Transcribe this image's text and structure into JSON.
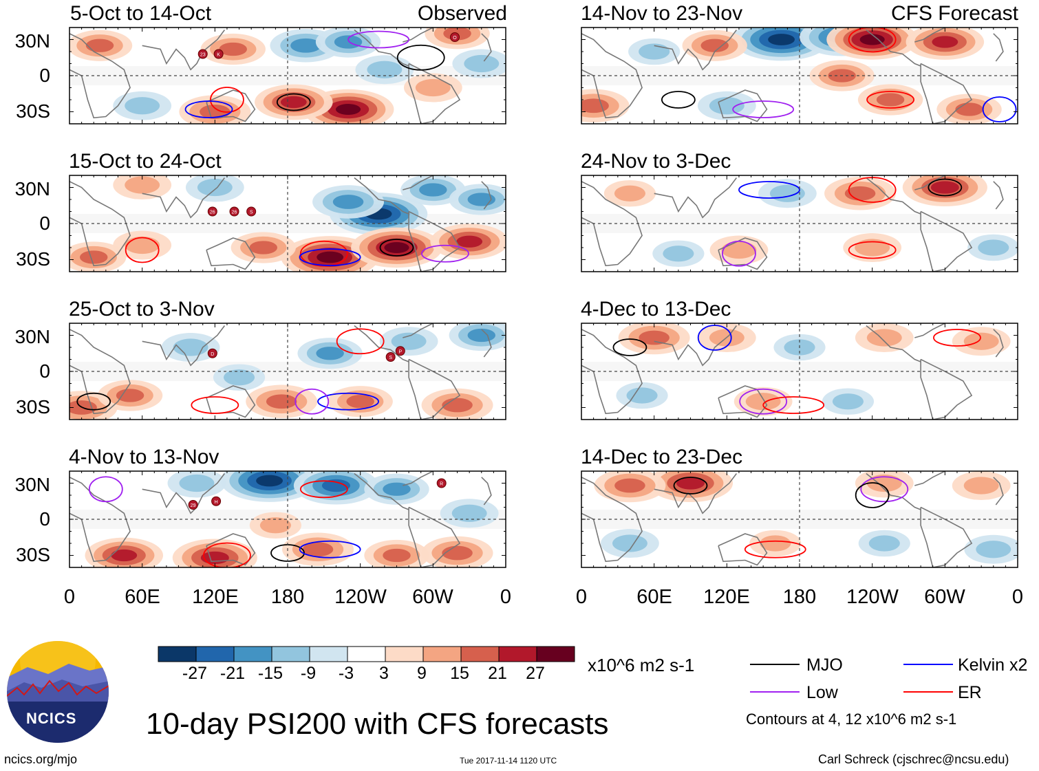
{
  "figure": {
    "title": "10-day PSI200 with CFS forecasts",
    "website": "ncics.org/mjo",
    "timestamp": "Tue 2017-11-14 1120 UTC",
    "credit": "Carl Schreck (cjschrec@ncsu.edu)",
    "logo_text": "NCICS"
  },
  "left_column_label": "Observed",
  "right_column_label": "CFS Forecast",
  "panels": [
    {
      "title": "5-Oct to 14-Oct"
    },
    {
      "title": "15-Oct to 24-Oct"
    },
    {
      "title": "25-Oct to 3-Nov"
    },
    {
      "title": "4-Nov to 13-Nov"
    },
    {
      "title": "14-Nov to 23-Nov"
    },
    {
      "title": "24-Nov to 3-Dec"
    },
    {
      "title": "4-Dec to 13-Dec"
    },
    {
      "title": "14-Dec to 23-Dec"
    }
  ],
  "colorbar": {
    "units": "x10^6 m2 s-1",
    "ticks": [
      "-27",
      "-21",
      "-15",
      "-9",
      "-3",
      "3",
      "9",
      "15",
      "21",
      "27"
    ],
    "colors": [
      "#0b3768",
      "#2166ac",
      "#4393c3",
      "#92c5de",
      "#d1e5f0",
      "#ffffff",
      "#fddbc7",
      "#f4a582",
      "#d6604d",
      "#b2182b",
      "#67001f"
    ]
  },
  "legend": {
    "items": [
      {
        "label": "MJO",
        "color": "#000000"
      },
      {
        "label": "Kelvin x2",
        "color": "#0000ff"
      },
      {
        "label": "Low",
        "color": "#a020f0"
      },
      {
        "label": "ER",
        "color": "#ff0000"
      }
    ],
    "note": "Contours at 4, 12 x10^6 m2 s-1"
  },
  "chart_data": {
    "type": "heatmap",
    "variable": "PSI200",
    "title": "10-day PSI200 with CFS forecasts",
    "units": "x10^6 m2 s-1",
    "x_ticks": [
      "0",
      "60E",
      "120E",
      "180",
      "120W",
      "60W",
      "0"
    ],
    "x_values": [
      0,
      60,
      120,
      180,
      240,
      300,
      360
    ],
    "y_ticks": [
      "30N",
      "0",
      "30S"
    ],
    "y_values": [
      30,
      0,
      -30
    ],
    "xlim": [
      0,
      360
    ],
    "ylim": [
      -40,
      40
    ],
    "contour_levels": [
      4,
      12
    ],
    "storm_labels": [
      {
        "panel": 0,
        "labels": [
          "23",
          "K",
          "O"
        ]
      },
      {
        "panel": 1,
        "labels": [
          "26",
          "26",
          "S"
        ]
      },
      {
        "panel": 2,
        "labels": [
          "D",
          "S",
          "P"
        ]
      },
      {
        "panel": 3,
        "labels": [
          "29",
          "H",
          "R"
        ]
      }
    ],
    "anomaly_features": [
      {
        "panel": 0,
        "features": [
          {
            "lon": 135,
            "lat": 22,
            "v": 12
          },
          {
            "lon": 230,
            "lat": -28,
            "v": 24
          },
          {
            "lon": 185,
            "lat": -22,
            "v": 18
          },
          {
            "lon": 120,
            "lat": -30,
            "v": 15
          },
          {
            "lon": 195,
            "lat": 25,
            "v": -15
          },
          {
            "lon": 230,
            "lat": 28,
            "v": -12
          },
          {
            "lon": 320,
            "lat": 35,
            "v": 12
          },
          {
            "lon": 340,
            "lat": 10,
            "v": -9
          },
          {
            "lon": 260,
            "lat": 5,
            "v": -9
          },
          {
            "lon": 25,
            "lat": 25,
            "v": 12
          },
          {
            "lon": 60,
            "lat": -25,
            "v": -9
          },
          {
            "lon": 300,
            "lat": -10,
            "v": 9
          }
        ]
      },
      {
        "panel": 1,
        "features": [
          {
            "lon": 255,
            "lat": 8,
            "v": -27
          },
          {
            "lon": 230,
            "lat": 18,
            "v": -15
          },
          {
            "lon": 215,
            "lat": -28,
            "v": 27
          },
          {
            "lon": 270,
            "lat": -20,
            "v": 24
          },
          {
            "lon": 330,
            "lat": -15,
            "v": 18
          },
          {
            "lon": 160,
            "lat": -20,
            "v": 12
          },
          {
            "lon": 20,
            "lat": -28,
            "v": 12
          },
          {
            "lon": 60,
            "lat": -18,
            "v": 9
          },
          {
            "lon": 300,
            "lat": 28,
            "v": -12
          },
          {
            "lon": 120,
            "lat": 30,
            "v": -9
          },
          {
            "lon": 60,
            "lat": 32,
            "v": 9
          },
          {
            "lon": 340,
            "lat": 20,
            "v": -12
          }
        ]
      },
      {
        "panel": 2,
        "features": [
          {
            "lon": 10,
            "lat": -30,
            "v": 15
          },
          {
            "lon": 50,
            "lat": -20,
            "v": 12
          },
          {
            "lon": 100,
            "lat": 20,
            "v": -9
          },
          {
            "lon": 175,
            "lat": -25,
            "v": 15
          },
          {
            "lon": 240,
            "lat": -25,
            "v": 12
          },
          {
            "lon": 320,
            "lat": -28,
            "v": 15
          },
          {
            "lon": 215,
            "lat": 15,
            "v": -12
          },
          {
            "lon": 280,
            "lat": 25,
            "v": -9
          },
          {
            "lon": 340,
            "lat": 30,
            "v": -12
          },
          {
            "lon": 140,
            "lat": -5,
            "v": -6
          }
        ]
      },
      {
        "panel": 3,
        "features": [
          {
            "lon": 165,
            "lat": 32,
            "v": -27
          },
          {
            "lon": 220,
            "lat": 28,
            "v": -21
          },
          {
            "lon": 120,
            "lat": -32,
            "v": 21
          },
          {
            "lon": 45,
            "lat": -30,
            "v": 18
          },
          {
            "lon": 205,
            "lat": -25,
            "v": 15
          },
          {
            "lon": 270,
            "lat": -30,
            "v": 12
          },
          {
            "lon": 320,
            "lat": -28,
            "v": 15
          },
          {
            "lon": 270,
            "lat": 25,
            "v": -12
          },
          {
            "lon": 330,
            "lat": 5,
            "v": -9
          },
          {
            "lon": 105,
            "lat": 30,
            "v": -9
          },
          {
            "lon": 170,
            "lat": -5,
            "v": 6
          }
        ]
      },
      {
        "panel": 4,
        "features": [
          {
            "lon": 165,
            "lat": 30,
            "v": -27
          },
          {
            "lon": 215,
            "lat": 32,
            "v": -21
          },
          {
            "lon": 240,
            "lat": 30,
            "v": 24
          },
          {
            "lon": 300,
            "lat": 28,
            "v": 18
          },
          {
            "lon": 215,
            "lat": 0,
            "v": 12
          },
          {
            "lon": 255,
            "lat": -20,
            "v": 12
          },
          {
            "lon": 10,
            "lat": -25,
            "v": 15
          },
          {
            "lon": 110,
            "lat": 25,
            "v": 12
          },
          {
            "lon": 120,
            "lat": -25,
            "v": -9
          },
          {
            "lon": 320,
            "lat": -28,
            "v": 12
          },
          {
            "lon": 60,
            "lat": 20,
            "v": -6
          }
        ]
      },
      {
        "panel": 5,
        "features": [
          {
            "lon": 300,
            "lat": 30,
            "v": 21
          },
          {
            "lon": 230,
            "lat": 25,
            "v": 15
          },
          {
            "lon": 170,
            "lat": 25,
            "v": -9
          },
          {
            "lon": 130,
            "lat": -22,
            "v": 9
          },
          {
            "lon": 240,
            "lat": -20,
            "v": 9
          },
          {
            "lon": 40,
            "lat": 25,
            "v": 6
          },
          {
            "lon": 80,
            "lat": -25,
            "v": -6
          },
          {
            "lon": 340,
            "lat": -20,
            "v": -6
          }
        ]
      },
      {
        "panel": 6,
        "features": [
          {
            "lon": 60,
            "lat": 28,
            "v": 15
          },
          {
            "lon": 120,
            "lat": 28,
            "v": 9
          },
          {
            "lon": 250,
            "lat": 28,
            "v": 9
          },
          {
            "lon": 330,
            "lat": 25,
            "v": 9
          },
          {
            "lon": 180,
            "lat": 20,
            "v": -6
          },
          {
            "lon": 150,
            "lat": -25,
            "v": 9
          },
          {
            "lon": 220,
            "lat": -25,
            "v": -6
          },
          {
            "lon": 50,
            "lat": -20,
            "v": -6
          }
        ]
      },
      {
        "panel": 7,
        "features": [
          {
            "lon": 90,
            "lat": 30,
            "v": 21
          },
          {
            "lon": 40,
            "lat": 28,
            "v": 15
          },
          {
            "lon": 250,
            "lat": 30,
            "v": 9
          },
          {
            "lon": 330,
            "lat": 28,
            "v": 9
          },
          {
            "lon": 40,
            "lat": -20,
            "v": -9
          },
          {
            "lon": 250,
            "lat": -20,
            "v": -6
          },
          {
            "lon": 340,
            "lat": -25,
            "v": -9
          },
          {
            "lon": 160,
            "lat": -20,
            "v": 6
          }
        ]
      }
    ],
    "contour_features": [
      {
        "panel": 0,
        "items": [
          {
            "type": "MJO",
            "lon": 185,
            "lat": -22
          },
          {
            "type": "MJO",
            "lon": 290,
            "lat": 15
          },
          {
            "type": "Low",
            "lon": 255,
            "lat": 30
          },
          {
            "type": "ER",
            "lon": 130,
            "lat": -20
          },
          {
            "type": "Kelvin",
            "lon": 115,
            "lat": -28
          }
        ]
      },
      {
        "panel": 1,
        "items": [
          {
            "type": "MJO",
            "lon": 270,
            "lat": -20
          },
          {
            "type": "ER",
            "lon": 210,
            "lat": -25
          },
          {
            "type": "Kelvin",
            "lon": 215,
            "lat": -28
          },
          {
            "type": "ER",
            "lon": 60,
            "lat": -22
          },
          {
            "type": "Low",
            "lon": 310,
            "lat": -25
          }
        ]
      },
      {
        "panel": 2,
        "items": [
          {
            "type": "MJO",
            "lon": 20,
            "lat": -25
          },
          {
            "type": "ER",
            "lon": 240,
            "lat": 25
          },
          {
            "type": "Kelvin",
            "lon": 230,
            "lat": -25
          },
          {
            "type": "Low",
            "lon": 200,
            "lat": -25
          },
          {
            "type": "ER",
            "lon": 120,
            "lat": -28
          }
        ]
      },
      {
        "panel": 3,
        "items": [
          {
            "type": "MJO",
            "lon": 180,
            "lat": -28
          },
          {
            "type": "ER",
            "lon": 130,
            "lat": -30
          },
          {
            "type": "Kelvin",
            "lon": 215,
            "lat": -25
          },
          {
            "type": "Low",
            "lon": 30,
            "lat": 25
          },
          {
            "type": "ER",
            "lon": 210,
            "lat": 25
          }
        ]
      },
      {
        "panel": 4,
        "items": [
          {
            "type": "MJO",
            "lon": 80,
            "lat": -20
          },
          {
            "type": "ER",
            "lon": 240,
            "lat": 30
          },
          {
            "type": "Low",
            "lon": 150,
            "lat": -28
          },
          {
            "type": "Kelvin",
            "lon": 345,
            "lat": -28
          },
          {
            "type": "ER",
            "lon": 255,
            "lat": -20
          }
        ]
      },
      {
        "panel": 5,
        "items": [
          {
            "type": "MJO",
            "lon": 300,
            "lat": 30
          },
          {
            "type": "ER",
            "lon": 240,
            "lat": 28
          },
          {
            "type": "Kelvin",
            "lon": 155,
            "lat": 28
          },
          {
            "type": "Low",
            "lon": 130,
            "lat": -25
          },
          {
            "type": "ER",
            "lon": 240,
            "lat": -22
          }
        ]
      },
      {
        "panel": 6,
        "items": [
          {
            "type": "MJO",
            "lon": 40,
            "lat": 20
          },
          {
            "type": "Low",
            "lon": 150,
            "lat": -25
          },
          {
            "type": "ER",
            "lon": 175,
            "lat": -28
          },
          {
            "type": "Kelvin",
            "lon": 110,
            "lat": 28
          },
          {
            "type": "ER",
            "lon": 310,
            "lat": 28
          }
        ]
      },
      {
        "panel": 7,
        "items": [
          {
            "type": "MJO",
            "lon": 90,
            "lat": 28
          },
          {
            "type": "Low",
            "lon": 250,
            "lat": 25
          },
          {
            "type": "ER",
            "lon": 160,
            "lat": -25
          },
          {
            "type": "MJO",
            "lon": 240,
            "lat": 20
          }
        ]
      }
    ]
  }
}
